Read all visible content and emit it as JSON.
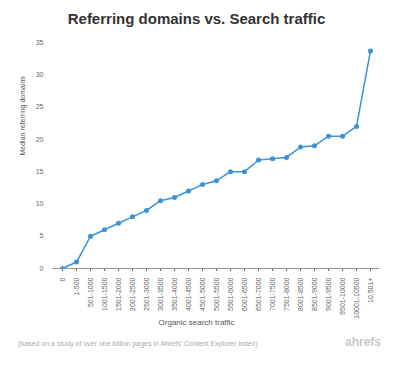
{
  "chart_data": {
    "type": "line",
    "title": "Referring domains vs. Search traffic",
    "x_label": "Organic search traffic",
    "y_label": "Median referring domains",
    "caption": "(based on a study of over one billion pages in Ahrefs' Content Explorer index)",
    "brand": "ahrefs",
    "categories": [
      "0",
      "1-500",
      "501-1000",
      "1001-1500",
      "1501-2000",
      "2001-2500",
      "2501-3000",
      "3001-3500",
      "3501-4000",
      "4001-4500",
      "4501-5000",
      "5001-5500",
      "5501-6000",
      "6001-6500",
      "6501-7000",
      "7001-7500",
      "7501-8000",
      "8001-8500",
      "8501-9000",
      "9001-9500",
      "9501-10000",
      "10001-10500",
      "10,501+"
    ],
    "values": [
      0,
      1,
      5,
      6,
      7,
      8,
      9,
      10.5,
      11,
      12,
      13,
      13.6,
      15,
      15,
      16.8,
      17,
      17.2,
      18.8,
      19,
      20.5,
      20.5,
      22,
      33.7
    ],
    "color": "#3a93d8",
    "marker": "circle",
    "ylim": [
      0,
      35
    ],
    "yticks": [
      0,
      5,
      10,
      15,
      20,
      25,
      30,
      35
    ],
    "grid": true
  }
}
